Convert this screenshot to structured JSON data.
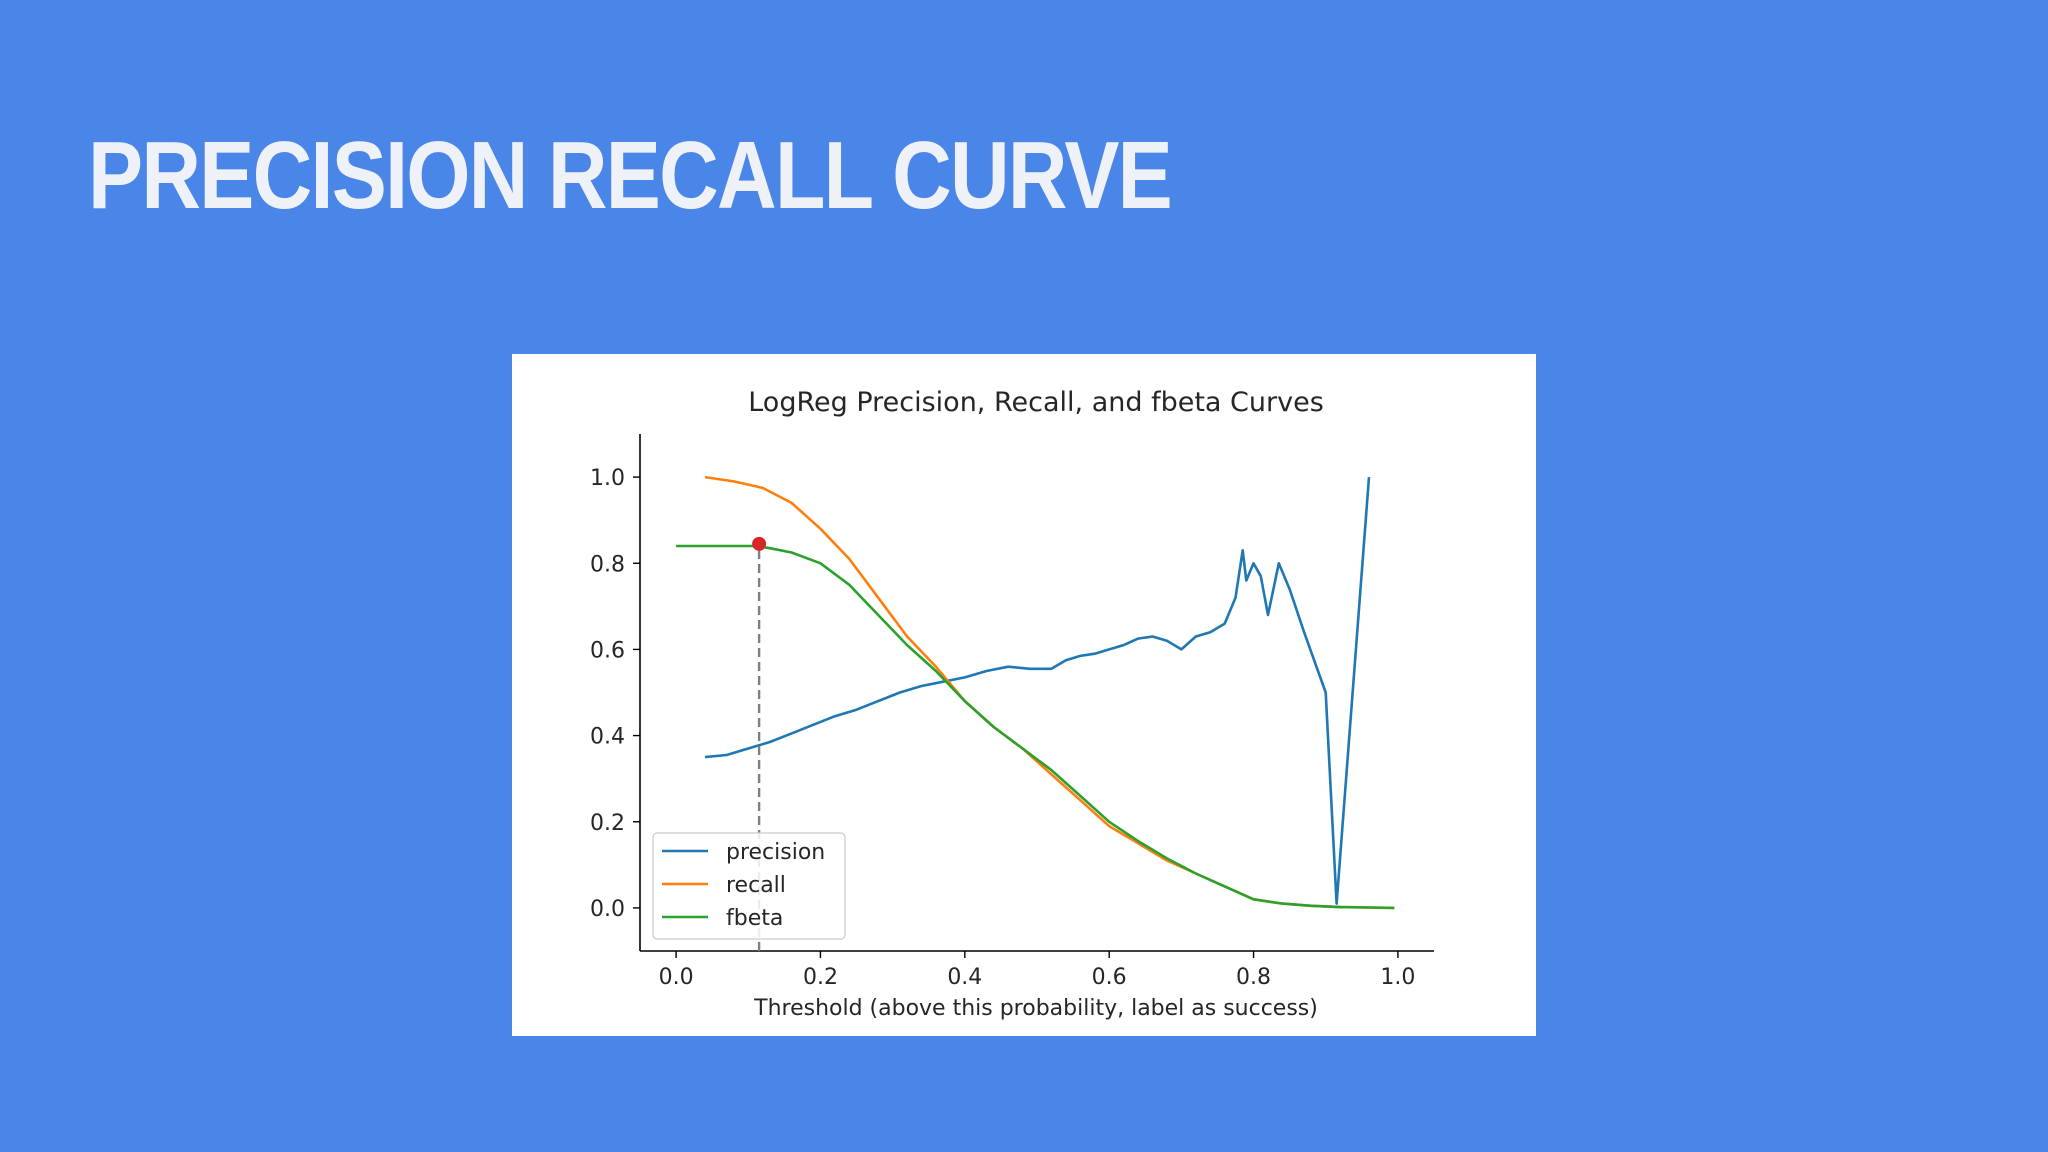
{
  "slide": {
    "title": "Precision Recall Curve"
  },
  "chart_data": {
    "type": "line",
    "title": "LogReg Precision, Recall, and fbeta Curves",
    "xlabel": "Threshold (above this probability, label as success)",
    "ylabel": "",
    "xlim": [
      -0.05,
      1.05
    ],
    "ylim": [
      -0.1,
      1.1
    ],
    "xticks": [
      "0.0",
      "0.2",
      "0.4",
      "0.6",
      "0.8",
      "1.0"
    ],
    "yticks": [
      "0.0",
      "0.2",
      "0.4",
      "0.6",
      "0.8",
      "1.0"
    ],
    "grid": false,
    "legend_position": "lower-left",
    "series": [
      {
        "name": "precision",
        "color": "#1f77b4",
        "points": [
          [
            0.04,
            0.35
          ],
          [
            0.07,
            0.355
          ],
          [
            0.1,
            0.37
          ],
          [
            0.13,
            0.385
          ],
          [
            0.16,
            0.405
          ],
          [
            0.19,
            0.425
          ],
          [
            0.22,
            0.445
          ],
          [
            0.25,
            0.46
          ],
          [
            0.28,
            0.48
          ],
          [
            0.31,
            0.5
          ],
          [
            0.34,
            0.515
          ],
          [
            0.37,
            0.525
          ],
          [
            0.4,
            0.535
          ],
          [
            0.43,
            0.55
          ],
          [
            0.46,
            0.56
          ],
          [
            0.49,
            0.555
          ],
          [
            0.52,
            0.555
          ],
          [
            0.54,
            0.575
          ],
          [
            0.56,
            0.585
          ],
          [
            0.58,
            0.59
          ],
          [
            0.6,
            0.6
          ],
          [
            0.62,
            0.61
          ],
          [
            0.64,
            0.625
          ],
          [
            0.66,
            0.63
          ],
          [
            0.68,
            0.62
          ],
          [
            0.7,
            0.6
          ],
          [
            0.72,
            0.63
          ],
          [
            0.74,
            0.64
          ],
          [
            0.76,
            0.66
          ],
          [
            0.775,
            0.72
          ],
          [
            0.785,
            0.83
          ],
          [
            0.79,
            0.76
          ],
          [
            0.8,
            0.8
          ],
          [
            0.81,
            0.77
          ],
          [
            0.82,
            0.68
          ],
          [
            0.835,
            0.8
          ],
          [
            0.85,
            0.74
          ],
          [
            0.87,
            0.64
          ],
          [
            0.9,
            0.5
          ],
          [
            0.915,
            0.01
          ],
          [
            0.96,
            1.0
          ]
        ]
      },
      {
        "name": "recall",
        "color": "#ff7f0e",
        "points": [
          [
            0.04,
            1.0
          ],
          [
            0.08,
            0.99
          ],
          [
            0.12,
            0.975
          ],
          [
            0.16,
            0.94
          ],
          [
            0.2,
            0.88
          ],
          [
            0.24,
            0.81
          ],
          [
            0.28,
            0.72
          ],
          [
            0.32,
            0.63
          ],
          [
            0.36,
            0.56
          ],
          [
            0.4,
            0.48
          ],
          [
            0.44,
            0.42
          ],
          [
            0.48,
            0.37
          ],
          [
            0.52,
            0.31
          ],
          [
            0.56,
            0.25
          ],
          [
            0.6,
            0.19
          ],
          [
            0.64,
            0.15
          ],
          [
            0.68,
            0.11
          ],
          [
            0.72,
            0.08
          ],
          [
            0.76,
            0.05
          ],
          [
            0.8,
            0.02
          ],
          [
            0.84,
            0.01
          ],
          [
            0.88,
            0.005
          ],
          [
            0.92,
            0.002
          ],
          [
            0.96,
            0.001
          ],
          [
            0.995,
            0.0
          ]
        ]
      },
      {
        "name": "fbeta",
        "color": "#2ca02c",
        "points": [
          [
            0.0,
            0.84
          ],
          [
            0.04,
            0.84
          ],
          [
            0.08,
            0.84
          ],
          [
            0.11,
            0.84
          ],
          [
            0.13,
            0.835
          ],
          [
            0.16,
            0.825
          ],
          [
            0.2,
            0.8
          ],
          [
            0.24,
            0.75
          ],
          [
            0.28,
            0.68
          ],
          [
            0.32,
            0.61
          ],
          [
            0.36,
            0.55
          ],
          [
            0.4,
            0.48
          ],
          [
            0.44,
            0.42
          ],
          [
            0.48,
            0.37
          ],
          [
            0.52,
            0.32
          ],
          [
            0.56,
            0.26
          ],
          [
            0.6,
            0.2
          ],
          [
            0.64,
            0.155
          ],
          [
            0.68,
            0.115
          ],
          [
            0.72,
            0.08
          ],
          [
            0.76,
            0.05
          ],
          [
            0.8,
            0.02
          ],
          [
            0.84,
            0.01
          ],
          [
            0.88,
            0.005
          ],
          [
            0.92,
            0.002
          ],
          [
            0.96,
            0.001
          ],
          [
            0.995,
            0.0
          ]
        ]
      }
    ],
    "marker": {
      "x": 0.115,
      "y": 0.845,
      "color": "#d62728"
    },
    "vline": {
      "x": 0.115,
      "y_from": -0.1,
      "y_to": 0.845,
      "style": "dashed",
      "color": "#7f7f7f"
    }
  }
}
